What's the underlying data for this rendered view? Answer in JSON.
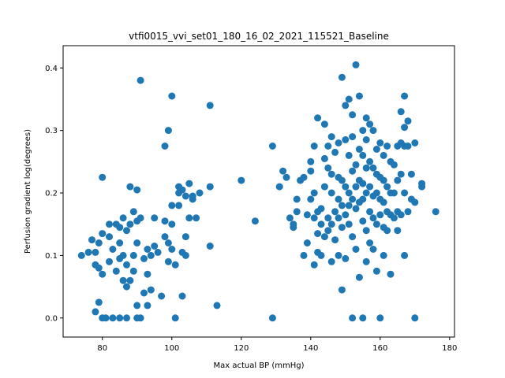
{
  "chart_data": {
    "type": "scatter",
    "title": "vtfi0015_vvi_set01_180_16_02_2021_115521_Baseline",
    "xlabel": "Max actual BP (mmHg)",
    "ylabel": "Perfusion gradient log(degrees)",
    "xlim": [
      68.7,
      181.4
    ],
    "ylim": [
      -0.0305,
      0.4356
    ],
    "xticks": [
      80,
      100,
      120,
      140,
      160,
      180
    ],
    "yticks": [
      0.0,
      0.1,
      0.2,
      0.3,
      0.4
    ],
    "xtick_labels": [
      "80",
      "100",
      "120",
      "140",
      "160",
      "180"
    ],
    "ytick_labels": [
      "0.0",
      "0.1",
      "0.2",
      "0.3",
      "0.4"
    ],
    "grid": false,
    "marker_color": "#1f77b4",
    "series": [
      {
        "points": [
          [
            74,
            0.1
          ],
          [
            76,
            0.105
          ],
          [
            77,
            0.125
          ],
          [
            78,
            0.085
          ],
          [
            78,
            0.01
          ],
          [
            79,
            0.025
          ],
          [
            78,
            0.105
          ],
          [
            79,
            0.08
          ],
          [
            79,
            0.12
          ],
          [
            80,
            0.135
          ],
          [
            80,
            0.225
          ],
          [
            80,
            0.07
          ],
          [
            81,
            0.0
          ],
          [
            80,
            0.0
          ],
          [
            82,
            0.13
          ],
          [
            82,
            0.15
          ],
          [
            82,
            0.09
          ],
          [
            83,
            0.0
          ],
          [
            83,
            0.11
          ],
          [
            84,
            0.15
          ],
          [
            84,
            0.075
          ],
          [
            85,
            0.145
          ],
          [
            85,
            0.0
          ],
          [
            85,
            0.095
          ],
          [
            85,
            0.12
          ],
          [
            86,
            0.16
          ],
          [
            86,
            0.06
          ],
          [
            86,
            0.1
          ],
          [
            87,
            0.14
          ],
          [
            87,
            0.05
          ],
          [
            87,
            0.0
          ],
          [
            87,
            0.085
          ],
          [
            88,
            0.21
          ],
          [
            88,
            0.15
          ],
          [
            88,
            0.06
          ],
          [
            89,
            0.17
          ],
          [
            89,
            0.1
          ],
          [
            89,
            0.075
          ],
          [
            90,
            0.0
          ],
          [
            90,
            0.02
          ],
          [
            90,
            0.155
          ],
          [
            90,
            0.12
          ],
          [
            90,
            0.205
          ],
          [
            91,
            0.38
          ],
          [
            91,
            0.0
          ],
          [
            91,
            0.16
          ],
          [
            92,
            0.04
          ],
          [
            92,
            0.095
          ],
          [
            93,
            0.11
          ],
          [
            93,
            0.07
          ],
          [
            93,
            0.02
          ],
          [
            94,
            0.045
          ],
          [
            94,
            0.1
          ],
          [
            95,
            0.16
          ],
          [
            95,
            0.115
          ],
          [
            96,
            0.105
          ],
          [
            97,
            0.035
          ],
          [
            98,
            0.275
          ],
          [
            98,
            0.13
          ],
          [
            98,
            0.155
          ],
          [
            99,
            0.3
          ],
          [
            99,
            0.09
          ],
          [
            99,
            0.12
          ],
          [
            100,
            0.355
          ],
          [
            100,
            0.15
          ],
          [
            100,
            0.18
          ],
          [
            100,
            0.11
          ],
          [
            101,
            0.085
          ],
          [
            101,
            0.0
          ],
          [
            102,
            0.21
          ],
          [
            102,
            0.2
          ],
          [
            102,
            0.18
          ],
          [
            103,
            0.205
          ],
          [
            103,
            0.035
          ],
          [
            103,
            0.105
          ],
          [
            104,
            0.195
          ],
          [
            104,
            0.1
          ],
          [
            104,
            0.13
          ],
          [
            105,
            0.215
          ],
          [
            105,
            0.16
          ],
          [
            106,
            0.19
          ],
          [
            106,
            0.195
          ],
          [
            107,
            0.16
          ],
          [
            108,
            0.2
          ],
          [
            111,
            0.21
          ],
          [
            111,
            0.34
          ],
          [
            111,
            0.115
          ],
          [
            113,
            0.02
          ],
          [
            120,
            0.22
          ],
          [
            124,
            0.155
          ],
          [
            129,
            0.275
          ],
          [
            129,
            0.0
          ],
          [
            131,
            0.21
          ],
          [
            132,
            0.235
          ],
          [
            133,
            0.225
          ],
          [
            134,
            0.16
          ],
          [
            135,
            0.145
          ],
          [
            135,
            0.15
          ],
          [
            136,
            0.19
          ],
          [
            136,
            0.17
          ],
          [
            137,
            0.22
          ],
          [
            138,
            0.225
          ],
          [
            138,
            0.1
          ],
          [
            139,
            0.165
          ],
          [
            139,
            0.12
          ],
          [
            140,
            0.25
          ],
          [
            140,
            0.19
          ],
          [
            140,
            0.235
          ],
          [
            141,
            0.275
          ],
          [
            141,
            0.16
          ],
          [
            141,
            0.085
          ],
          [
            141,
            0.2
          ],
          [
            142,
            0.32
          ],
          [
            142,
            0.105
          ],
          [
            142,
            0.17
          ],
          [
            142,
            0.135
          ],
          [
            143,
            0.15
          ],
          [
            143,
            0.1
          ],
          [
            143,
            0.175
          ],
          [
            144,
            0.31
          ],
          [
            144,
            0.255
          ],
          [
            144,
            0.21
          ],
          [
            144,
            0.13
          ],
          [
            145,
            0.275
          ],
          [
            145,
            0.24
          ],
          [
            145,
            0.16
          ],
          [
            145,
            0.14
          ],
          [
            146,
            0.29
          ],
          [
            146,
            0.2
          ],
          [
            146,
            0.15
          ],
          [
            146,
            0.09
          ],
          [
            146,
            0.23
          ],
          [
            147,
            0.265
          ],
          [
            147,
            0.17
          ],
          [
            147,
            0.125
          ],
          [
            148,
            0.28
          ],
          [
            148,
            0.225
          ],
          [
            148,
            0.19
          ],
          [
            148,
            0.16
          ],
          [
            148,
            0.1
          ],
          [
            149,
            0.385
          ],
          [
            149,
            0.22
          ],
          [
            149,
            0.18
          ],
          [
            149,
            0.145
          ],
          [
            149,
            0.045
          ],
          [
            150,
            0.34
          ],
          [
            150,
            0.285
          ],
          [
            150,
            0.21
          ],
          [
            150,
            0.165
          ],
          [
            150,
            0.095
          ],
          [
            151,
            0.35
          ],
          [
            151,
            0.26
          ],
          [
            151,
            0.2
          ],
          [
            151,
            0.18
          ],
          [
            151,
            0.15
          ],
          [
            152,
            0.325
          ],
          [
            152,
            0.29
          ],
          [
            152,
            0.235
          ],
          [
            152,
            0.19
          ],
          [
            152,
            0.13
          ],
          [
            152,
            0.0
          ],
          [
            153,
            0.405
          ],
          [
            153,
            0.245
          ],
          [
            153,
            0.21
          ],
          [
            153,
            0.175
          ],
          [
            153,
            0.11
          ],
          [
            154,
            0.355
          ],
          [
            154,
            0.27
          ],
          [
            154,
            0.22
          ],
          [
            154,
            0.185
          ],
          [
            154,
            0.065
          ],
          [
            155,
            0.3
          ],
          [
            155,
            0.26
          ],
          [
            155,
            0.215
          ],
          [
            155,
            0.19
          ],
          [
            155,
            0.155
          ],
          [
            155,
            0.0
          ],
          [
            156,
            0.32
          ],
          [
            156,
            0.285
          ],
          [
            156,
            0.24
          ],
          [
            156,
            0.2
          ],
          [
            156,
            0.14
          ],
          [
            156,
            0.09
          ],
          [
            157,
            0.31
          ],
          [
            157,
            0.25
          ],
          [
            157,
            0.21
          ],
          [
            157,
            0.17
          ],
          [
            157,
            0.12
          ],
          [
            158,
            0.3
          ],
          [
            158,
            0.24
          ],
          [
            158,
            0.195
          ],
          [
            158,
            0.16
          ],
          [
            158,
            0.11
          ],
          [
            159,
            0.27
          ],
          [
            159,
            0.23
          ],
          [
            159,
            0.2
          ],
          [
            159,
            0.15
          ],
          [
            159,
            0.075
          ],
          [
            160,
            0.28
          ],
          [
            160,
            0.225
          ],
          [
            160,
            0.19
          ],
          [
            160,
            0.165
          ],
          [
            160,
            0.0
          ],
          [
            161,
            0.26
          ],
          [
            161,
            0.22
          ],
          [
            161,
            0.185
          ],
          [
            161,
            0.145
          ],
          [
            161,
            0.1
          ],
          [
            162,
            0.275
          ],
          [
            162,
            0.21
          ],
          [
            162,
            0.17
          ],
          [
            162,
            0.14
          ],
          [
            163,
            0.25
          ],
          [
            163,
            0.2
          ],
          [
            163,
            0.165
          ],
          [
            163,
            0.07
          ],
          [
            164,
            0.245
          ],
          [
            164,
            0.2
          ],
          [
            164,
            0.16
          ],
          [
            165,
            0.275
          ],
          [
            165,
            0.22
          ],
          [
            165,
            0.17
          ],
          [
            165,
            0.14
          ],
          [
            166,
            0.33
          ],
          [
            166,
            0.28
          ],
          [
            166,
            0.23
          ],
          [
            166,
            0.165
          ],
          [
            167,
            0.355
          ],
          [
            167,
            0.305
          ],
          [
            167,
            0.275
          ],
          [
            167,
            0.2
          ],
          [
            167,
            0.1
          ],
          [
            168,
            0.315
          ],
          [
            168,
            0.275
          ],
          [
            168,
            0.17
          ],
          [
            169,
            0.23
          ],
          [
            169,
            0.19
          ],
          [
            170,
            0.28
          ],
          [
            170,
            0.185
          ],
          [
            170,
            0.0
          ],
          [
            172,
            0.215
          ],
          [
            172,
            0.21
          ],
          [
            176,
            0.17
          ]
        ]
      }
    ]
  }
}
